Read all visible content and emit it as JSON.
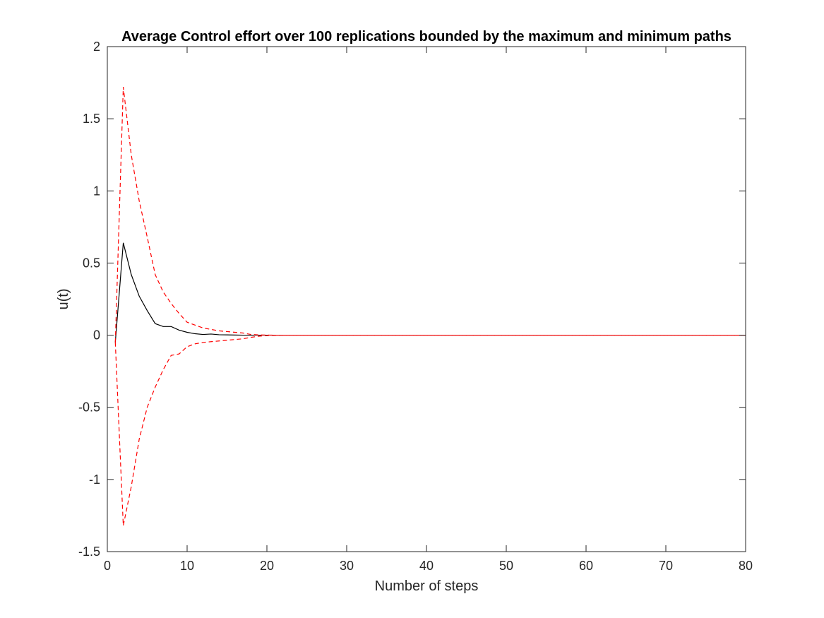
{
  "chart_data": {
    "type": "line",
    "title": "Average Control effort over 100 replications bounded by the maximum and minimum paths",
    "xlabel": "Number of steps",
    "ylabel": "u(t)",
    "xlim": [
      0,
      80
    ],
    "ylim": [
      -1.5,
      2
    ],
    "xticks": [
      0,
      10,
      20,
      30,
      40,
      50,
      60,
      70,
      80
    ],
    "yticks": [
      -1.5,
      -1,
      -0.5,
      0,
      0.5,
      1,
      1.5,
      2
    ],
    "xtick_labels": [
      "0",
      "10",
      "20",
      "30",
      "40",
      "50",
      "60",
      "70",
      "80"
    ],
    "ytick_labels": [
      "-1.5",
      "-1",
      "-0.5",
      "0",
      "0.5",
      "1",
      "1.5",
      "2"
    ],
    "grid": false,
    "legend": "none",
    "series": [
      {
        "style": "solid",
        "color": "#000000",
        "x": [
          1,
          2,
          3,
          4,
          5,
          6,
          7,
          8,
          9,
          10,
          11,
          12,
          13,
          14,
          15,
          16,
          17,
          18,
          19,
          20,
          21,
          22,
          23,
          24,
          25,
          30,
          40,
          50,
          60,
          70,
          80
        ],
        "y": [
          -0.05,
          0.64,
          0.42,
          0.27,
          0.17,
          0.08,
          0.06,
          0.06,
          0.035,
          0.02,
          0.01,
          0.005,
          0.008,
          0.003,
          0.002,
          0.001,
          0,
          0,
          0,
          0,
          0,
          0,
          0,
          0,
          0,
          0,
          0,
          0,
          0,
          0,
          0
        ]
      },
      {
        "style": "dashed",
        "color": "#ff0000",
        "x": [
          1,
          2,
          3,
          4,
          5,
          6,
          7,
          8,
          9,
          10,
          11,
          12,
          13,
          14,
          15,
          16,
          17,
          18,
          19,
          20,
          21,
          22,
          25,
          30,
          40,
          50,
          60,
          70,
          80
        ],
        "y": [
          -0.05,
          1.72,
          1.25,
          0.93,
          0.68,
          0.42,
          0.3,
          0.22,
          0.15,
          0.09,
          0.07,
          0.05,
          0.04,
          0.03,
          0.025,
          0.02,
          0.015,
          0.005,
          0.002,
          0.001,
          0,
          0,
          0,
          0,
          0,
          0,
          0,
          0,
          0
        ]
      },
      {
        "style": "dashed",
        "color": "#ff0000",
        "x": [
          1,
          2,
          3,
          4,
          5,
          6,
          7,
          8,
          9,
          10,
          11,
          12,
          13,
          14,
          15,
          16,
          17,
          18,
          19,
          20,
          21,
          22,
          25,
          30,
          40,
          50,
          60,
          70,
          80
        ],
        "y": [
          -0.05,
          -1.32,
          -1.05,
          -0.72,
          -0.5,
          -0.36,
          -0.24,
          -0.14,
          -0.13,
          -0.08,
          -0.06,
          -0.05,
          -0.045,
          -0.04,
          -0.035,
          -0.03,
          -0.025,
          -0.015,
          -0.007,
          -0.003,
          -0.001,
          0,
          0,
          0,
          0,
          0,
          0,
          0,
          0
        ]
      }
    ]
  }
}
